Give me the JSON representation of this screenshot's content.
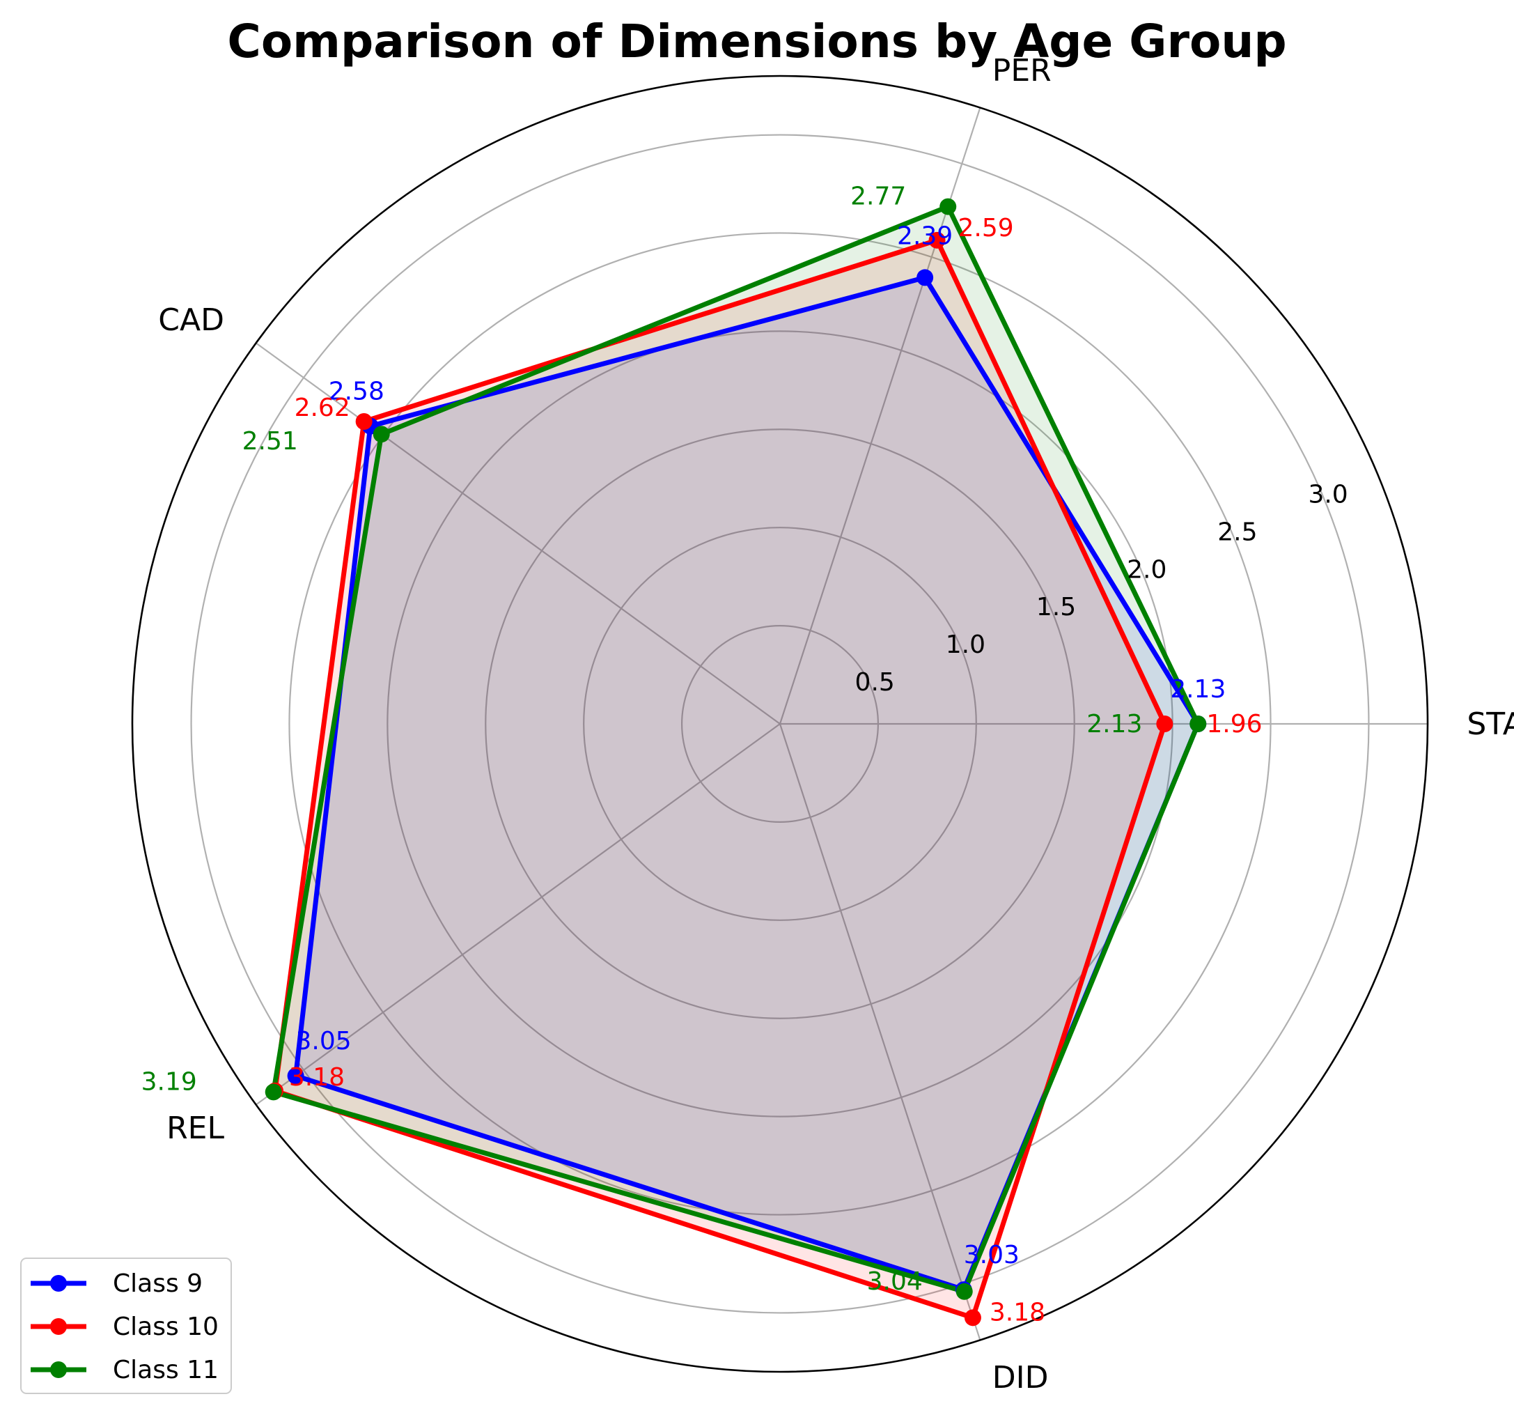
{
  "chart_data": {
    "type": "radar",
    "title": "Comparison of Dimensions by Age Group",
    "categories": [
      "STA",
      "PER",
      "CAD",
      "REL",
      "DID"
    ],
    "radial_ticks": [
      "0.5",
      "1.0",
      "1.5",
      "2.0",
      "2.5",
      "3.0"
    ],
    "radial_tick_values": [
      0.5,
      1.0,
      1.5,
      2.0,
      2.5,
      3.0
    ],
    "rlim": [
      0,
      3.3
    ],
    "grid": true,
    "legend_position": "lower-left",
    "series": [
      {
        "name": "Class 9",
        "color": "#0000ff",
        "values": [
          2.13,
          2.39,
          2.58,
          3.05,
          3.03
        ],
        "labels": [
          "2.13",
          "2.39",
          "2.58",
          "3.05",
          "3.03"
        ]
      },
      {
        "name": "Class 10",
        "color": "#ff0000",
        "values": [
          1.96,
          2.59,
          2.62,
          3.18,
          3.18
        ],
        "labels": [
          "1.96",
          "2.59",
          "2.62",
          "3.18",
          "3.18"
        ]
      },
      {
        "name": "Class 11",
        "color": "#008000",
        "values": [
          2.13,
          2.77,
          2.51,
          3.19,
          3.04
        ],
        "labels": [
          "2.13",
          "2.77",
          "2.51",
          "3.19",
          "3.04"
        ]
      }
    ]
  }
}
